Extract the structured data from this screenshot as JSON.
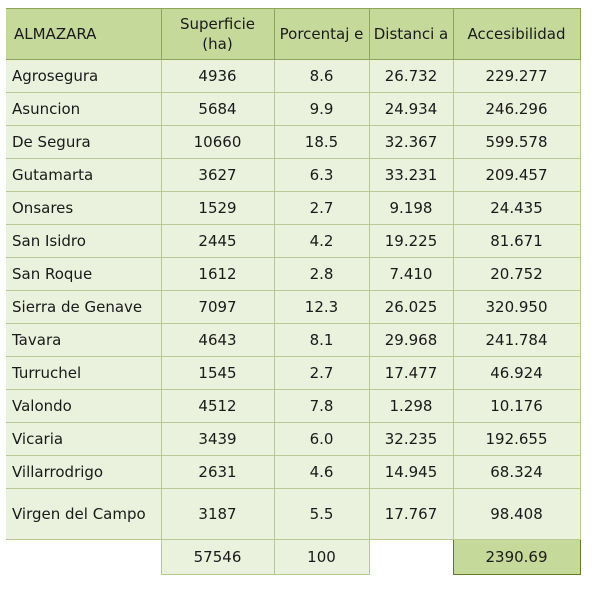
{
  "table": {
    "headers": {
      "almazara": "ALMAZARA",
      "superficie": "Superficie (ha)",
      "porcentaje": "Porcentaj e",
      "distancia": "Distanci a",
      "accesibilidad": "Accesibilidad"
    },
    "rows": [
      {
        "almazara": "Agrosegura",
        "superficie": "4936",
        "porcentaje": "8.6",
        "distancia": "26.732",
        "accesibilidad": "229.277"
      },
      {
        "almazara": "Asuncion",
        "superficie": "5684",
        "porcentaje": "9.9",
        "distancia": "24.934",
        "accesibilidad": "246.296"
      },
      {
        "almazara": "De Segura",
        "superficie": "10660",
        "porcentaje": "18.5",
        "distancia": "32.367",
        "accesibilidad": "599.578"
      },
      {
        "almazara": "Gutamarta",
        "superficie": "3627",
        "porcentaje": "6.3",
        "distancia": "33.231",
        "accesibilidad": "209.457"
      },
      {
        "almazara": "Onsares",
        "superficie": "1529",
        "porcentaje": "2.7",
        "distancia": "9.198",
        "accesibilidad": "24.435"
      },
      {
        "almazara": "San Isidro",
        "superficie": "2445",
        "porcentaje": "4.2",
        "distancia": "19.225",
        "accesibilidad": "81.671"
      },
      {
        "almazara": "San Roque",
        "superficie": "1612",
        "porcentaje": "2.8",
        "distancia": "7.410",
        "accesibilidad": "20.752"
      },
      {
        "almazara": "Sierra de Genave",
        "superficie": "7097",
        "porcentaje": "12.3",
        "distancia": "26.025",
        "accesibilidad": "320.950"
      },
      {
        "almazara": "Tavara",
        "superficie": "4643",
        "porcentaje": "8.1",
        "distancia": "29.968",
        "accesibilidad": "241.784"
      },
      {
        "almazara": "Turruchel",
        "superficie": "1545",
        "porcentaje": "2.7",
        "distancia": "17.477",
        "accesibilidad": "46.924"
      },
      {
        "almazara": "Valondo",
        "superficie": "4512",
        "porcentaje": "7.8",
        "distancia": "1.298",
        "accesibilidad": "10.176"
      },
      {
        "almazara": "Vicaria",
        "superficie": "3439",
        "porcentaje": "6.0",
        "distancia": "32.235",
        "accesibilidad": "192.655"
      },
      {
        "almazara": "Villarrodrigo",
        "superficie": "2631",
        "porcentaje": "4.6",
        "distancia": "14.945",
        "accesibilidad": "68.324"
      },
      {
        "almazara": "Virgen del Campo",
        "superficie": "3187",
        "porcentaje": "5.5",
        "distancia": "17.767",
        "accesibilidad": "98.408"
      }
    ],
    "totals": {
      "superficie": "57546",
      "porcentaje": "100",
      "accesibilidad": "2390.69"
    }
  },
  "colors": {
    "header_bg": "#c5d99b",
    "row_bg": "#eaf1dd",
    "border": "#8ea45d"
  }
}
